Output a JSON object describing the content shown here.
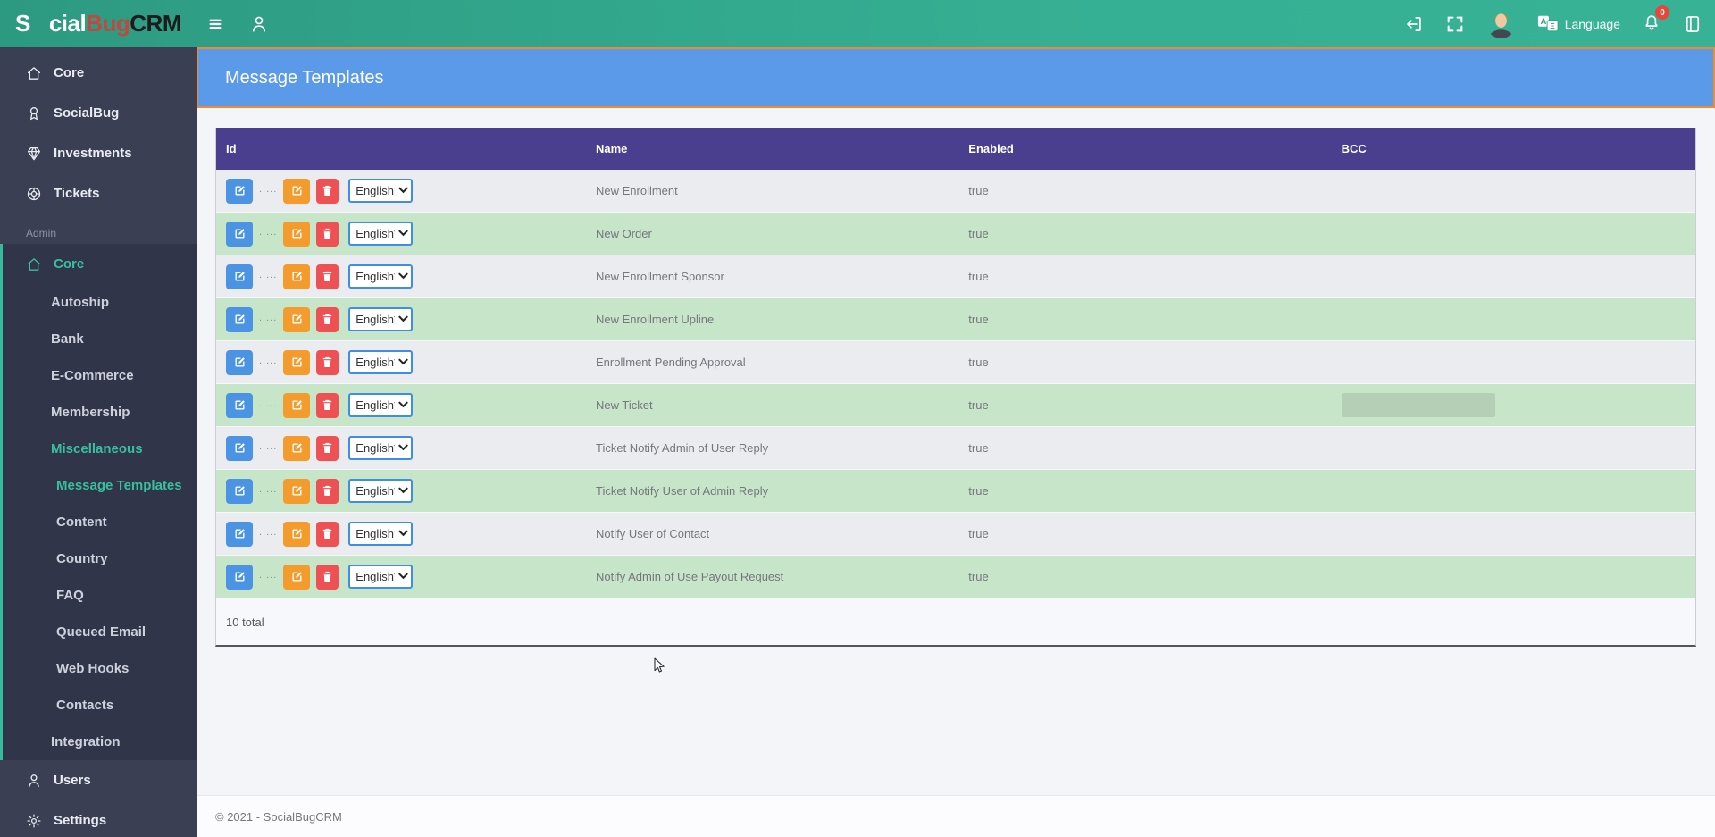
{
  "brand": {
    "part1": "S",
    "part2": "cial",
    "part3": "Bug",
    "part4": "CRM",
    "ladybug_color": "#c6453c",
    "crm_color": "#1c1c1c"
  },
  "navbar": {
    "left_icons": [
      "hamburger-icon",
      "user-icon"
    ],
    "language_label": "Language",
    "notification_count": "0",
    "right_icons": [
      "signout-icon",
      "fullscreen-icon",
      "avatar",
      "translate-icon",
      "bell-icon",
      "journal-icon"
    ]
  },
  "sidebar": {
    "items": [
      {
        "label": "Core",
        "icon": "home-icon",
        "level": "top"
      },
      {
        "label": "SocialBug",
        "icon": "award-icon",
        "level": "top"
      },
      {
        "label": "Investments",
        "icon": "gem-icon",
        "level": "top"
      },
      {
        "label": "Tickets",
        "icon": "ticket-icon",
        "level": "top"
      },
      {
        "label": "Admin",
        "level": "section"
      },
      {
        "label": "Core",
        "icon": "home-icon",
        "level": "top",
        "active": true,
        "grouped": true
      },
      {
        "label": "Autoship",
        "level": "sub1",
        "grouped": true
      },
      {
        "label": "Bank",
        "level": "sub1",
        "grouped": true
      },
      {
        "label": "E-Commerce",
        "level": "sub1",
        "grouped": true
      },
      {
        "label": "Membership",
        "level": "sub1",
        "grouped": true
      },
      {
        "label": "Miscellaneous",
        "level": "sub1",
        "active": true,
        "grouped": true
      },
      {
        "label": "Message Templates",
        "level": "sub2",
        "active": true,
        "grouped": true
      },
      {
        "label": "Content",
        "level": "sub2",
        "grouped": true
      },
      {
        "label": "Country",
        "level": "sub2",
        "grouped": true
      },
      {
        "label": "FAQ",
        "level": "sub2",
        "grouped": true
      },
      {
        "label": "Queued Email",
        "level": "sub2",
        "grouped": true
      },
      {
        "label": "Web Hooks",
        "level": "sub2",
        "grouped": true
      },
      {
        "label": "Contacts",
        "level": "sub2",
        "grouped": true
      },
      {
        "label": "Integration",
        "level": "sub1",
        "grouped": true
      },
      {
        "label": "Users",
        "icon": "users-icon",
        "level": "top"
      },
      {
        "label": "Settings",
        "icon": "gear-icon",
        "level": "top"
      }
    ]
  },
  "page": {
    "title": "Message Templates"
  },
  "table": {
    "columns": [
      "Id",
      "Name",
      "Enabled",
      "BCC"
    ],
    "row_dots": ".....",
    "language_option": "English*",
    "rows": [
      {
        "name": "New Enrollment",
        "enabled": "true"
      },
      {
        "name": "New Order",
        "enabled": "true"
      },
      {
        "name": "New Enrollment Sponsor",
        "enabled": "true"
      },
      {
        "name": "New Enrollment Upline",
        "enabled": "true"
      },
      {
        "name": "Enrollment Pending Approval",
        "enabled": "true"
      },
      {
        "name": "New Ticket",
        "enabled": "true",
        "bcc_redacted": true
      },
      {
        "name": "Ticket Notify Admin of User Reply",
        "enabled": "true"
      },
      {
        "name": "Ticket Notify User of Admin Reply",
        "enabled": "true"
      },
      {
        "name": "Notify User of Contact",
        "enabled": "true"
      },
      {
        "name": "Notify Admin of Use Payout Request",
        "enabled": "true"
      }
    ],
    "total": "10 total"
  },
  "footer": {
    "copyright": "© 2021 - SocialBugCRM"
  },
  "colors": {
    "navbar_teal": "#36b094",
    "sidebar_dark": "#3a3f53",
    "accent_teal": "#38bf9e",
    "banner_blue": "#5b9ae9",
    "banner_border": "#ee8b30",
    "table_header_purple": "#4a3e8f",
    "row_green": "#c7e5c9",
    "row_gray": "#ebecf0",
    "btn_blue": "#4b93e3",
    "btn_orange": "#f39b2d",
    "btn_red": "#ee5153"
  }
}
